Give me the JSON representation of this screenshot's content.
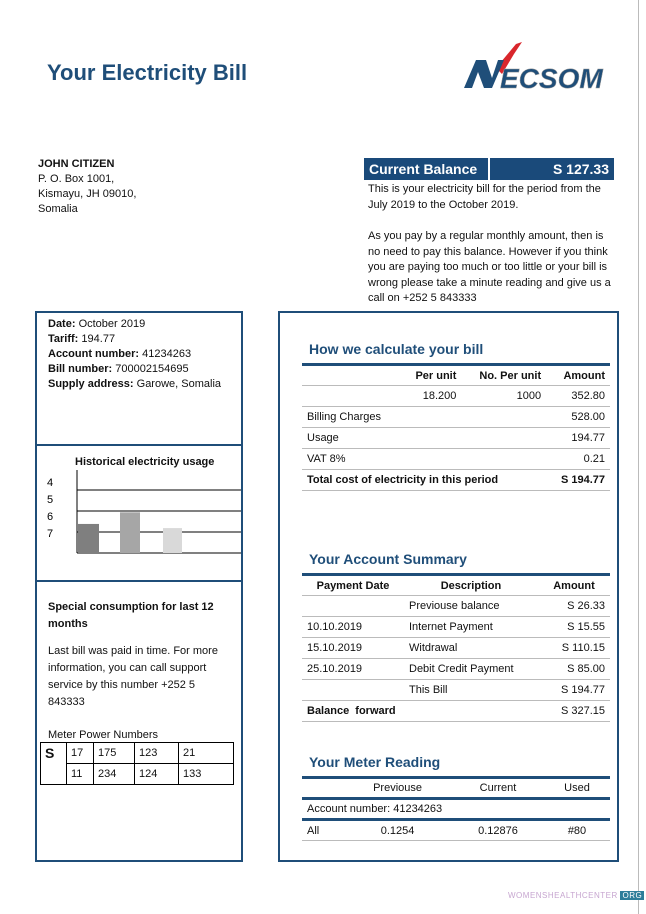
{
  "header": {
    "title": "Your Electricity Bill",
    "logo_text": "NECSOM"
  },
  "customer": {
    "name": "JOHN CITIZEN",
    "lines": [
      "P. O. Box 1001,",
      "Kismayu, JH 09010,",
      "Somalia"
    ]
  },
  "balance": {
    "label": "Current Balance",
    "amount": "S 127.33",
    "para1": "This is your electricity bill for the period from the July 2019 to the October 2019.",
    "para2": "As you pay by a regular monthly amount, then is no need to pay this balance. However if you think you are paying too much or too little or your bill is wrong please take a minute reading and give us a call on +252 5 843333"
  },
  "details": [
    {
      "label": "Date:",
      "value": " October 2019"
    },
    {
      "label": "Tariff:",
      "value": " 194.77"
    },
    {
      "label": "Account number:",
      "value": " 41234263"
    },
    {
      "label": "Bill number:",
      "value": " 700002154695"
    },
    {
      "label": "Supply address:",
      "value": " Garowe, Somalia"
    }
  ],
  "usage_chart": {
    "title": "Historical electricity usage",
    "y_tick_labels": [
      "4",
      "5",
      "6",
      "7"
    ],
    "bar_levels": [
      0.35,
      0.49,
      0.3
    ],
    "bar_colors": [
      "#7f7f7f",
      "#a6a6a6",
      "#d9d9d9"
    ]
  },
  "special": {
    "heading": "Special consumption for last 12 months",
    "text": "Last bill was paid in time. For more information, you can call support service by this number +252 5 843333",
    "meter_label": "Meter Power Numbers",
    "meter_prefix": "S",
    "meter_rows": [
      [
        "17",
        "175",
        "123",
        "21"
      ],
      [
        "11",
        "234",
        "124",
        "133"
      ]
    ]
  },
  "calc": {
    "title": "How we calculate your bill",
    "headers": [
      "",
      "Per unit",
      "No. Per unit",
      "Amount"
    ],
    "rows": [
      [
        "",
        "18.200",
        "1000",
        "352.80"
      ],
      [
        "Billing Charges",
        "",
        "",
        "528.00"
      ],
      [
        "Usage",
        "",
        "",
        "194.77"
      ],
      [
        "VAT 8%",
        "",
        "",
        "0.21"
      ]
    ],
    "total_label": "Total cost of electricity in this period",
    "total_value": "S 194.77"
  },
  "summary": {
    "title": "Your Account Summary",
    "headers": [
      "Payment Date",
      "Description",
      "Amount"
    ],
    "rows": [
      [
        "",
        "Previouse balance",
        "S 26.33"
      ],
      [
        "10.10.2019",
        "Internet Payment",
        "S 15.55"
      ],
      [
        "15.10.2019",
        "Witdrawal",
        "S 110.15"
      ],
      [
        "25.10.2019",
        "Debit Credit Payment",
        "S 85.00"
      ],
      [
        "",
        "This Bill",
        "S 194.77"
      ]
    ],
    "forward_label": "Balance  forward",
    "forward_value": "S 327.15"
  },
  "meter": {
    "title": "Your Meter Reading",
    "headers": [
      "",
      "Previouse",
      "Current",
      "Used"
    ],
    "account": "Account number: 41234263",
    "row": [
      "All",
      "0.1254",
      "0.12876",
      "#80"
    ]
  },
  "watermark": {
    "text": "WOMENSHEALTHCENTER",
    "org": "ORG"
  },
  "colors": {
    "brand": "#1f4e79",
    "balance_bar": "#1a4a7a"
  }
}
